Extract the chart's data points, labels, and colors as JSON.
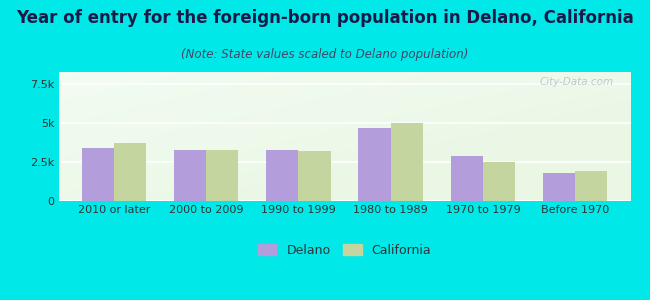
{
  "categories": [
    "2010 or later",
    "2000 to 2009",
    "1990 to 1999",
    "1980 to 1989",
    "1970 to 1979",
    "Before 1970"
  ],
  "delano": [
    3400,
    3300,
    3300,
    4700,
    2900,
    1800
  ],
  "california": [
    3700,
    3300,
    3200,
    5000,
    2500,
    1950
  ],
  "delano_color": "#b39ddb",
  "california_color": "#c5d5a0",
  "title": "Year of entry for the foreign-born population in Delano, California",
  "subtitle": "(Note: State values scaled to Delano population)",
  "ylabel_ticks": [
    0,
    2500,
    5000,
    7500
  ],
  "ylabel_labels": [
    "0",
    "2.5k",
    "5k",
    "7.5k"
  ],
  "ylim": [
    0,
    8300
  ],
  "background_color": "#00e8e8",
  "watermark": "City-Data.com",
  "legend_delano": "Delano",
  "legend_california": "California",
  "bar_width": 0.35,
  "title_fontsize": 12,
  "subtitle_fontsize": 8.5,
  "tick_fontsize": 8,
  "legend_fontsize": 9,
  "title_color": "#1a1a4a",
  "subtitle_color": "#444466"
}
